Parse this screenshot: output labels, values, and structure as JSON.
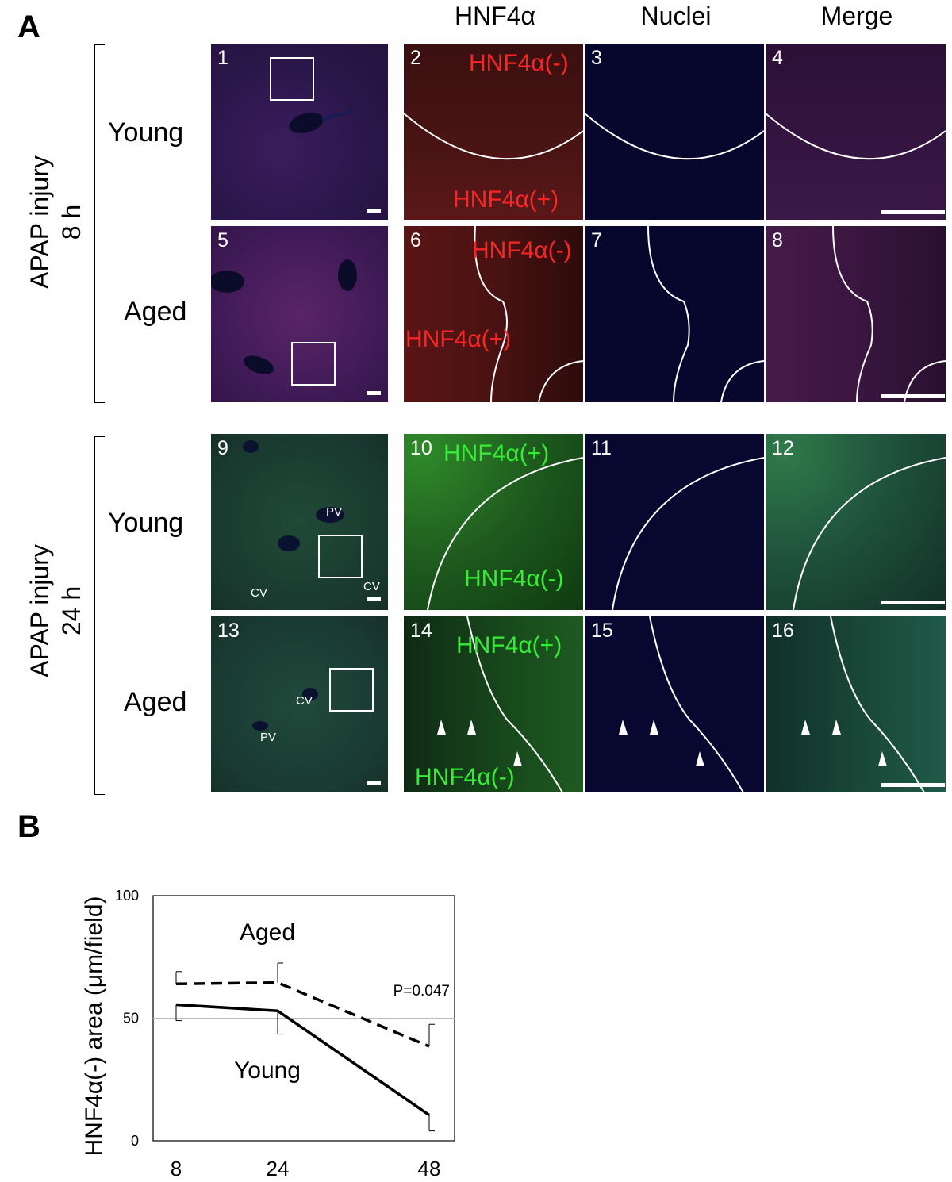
{
  "panel_a": {
    "letter": "A",
    "columns": [
      "HNF4α",
      "Nuclei",
      "Merge"
    ],
    "groups": [
      {
        "label_line1": "APAP injury",
        "label_line2": "8 h",
        "rows": [
          {
            "name": "Young",
            "tiles": [
              "1",
              "2",
              "3",
              "4"
            ],
            "neg": "HNF4α(-)",
            "pos": "HNF4α(+)"
          },
          {
            "name": "Aged",
            "tiles": [
              "5",
              "6",
              "7",
              "8"
            ],
            "neg": "HNF4α(-)",
            "pos": "HNF4α(+)"
          }
        ]
      },
      {
        "label_line1": "APAP injury",
        "label_line2": "24 h",
        "rows": [
          {
            "name": "Young",
            "tiles": [
              "9",
              "10",
              "11",
              "12"
            ],
            "neg": "HNF4α(-)",
            "pos": "HNF4α(+)",
            "pv": "PV",
            "cv1": "CV",
            "cv2": "CV"
          },
          {
            "name": "Aged",
            "tiles": [
              "13",
              "14",
              "15",
              "16"
            ],
            "neg": "HNF4α(-)",
            "pos": "HNF4α(+)",
            "pv": "PV",
            "cv1": "CV"
          }
        ]
      }
    ]
  },
  "panel_b": {
    "letter": "B",
    "chart_data": {
      "type": "line",
      "x": [
        8,
        24,
        48
      ],
      "ylim": [
        0,
        100
      ],
      "yticks": [
        0,
        50,
        100
      ],
      "ylabel": "HNF4α(-) area (μm/field)",
      "xlabel": "",
      "grid": "horizontal line at 50",
      "series": [
        {
          "name": "Aged",
          "values": [
            64,
            64.5,
            38.5
          ],
          "error": [
            5,
            8,
            9
          ],
          "style": "dashed"
        },
        {
          "name": "Young",
          "values": [
            55.5,
            53,
            10.5
          ],
          "error": [
            6.5,
            9.5,
            6.5
          ],
          "style": "solid"
        }
      ],
      "annotation": "P=0.047"
    }
  }
}
